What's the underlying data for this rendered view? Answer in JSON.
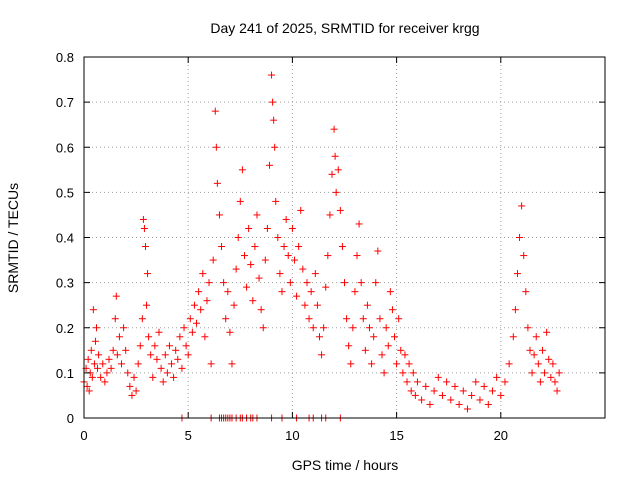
{
  "chart_data": {
    "type": "scatter",
    "title": "Day 241 of 2025, SRMTID for receiver krgg",
    "xlabel": "GPS time / hours",
    "ylabel": "SRMTID / TECUs",
    "xlim": [
      0,
      25
    ],
    "ylim": [
      0,
      0.8
    ],
    "xticks": [
      0,
      5,
      10,
      15,
      20
    ],
    "xtick_labels": [
      "0",
      "5",
      "10",
      "15",
      "20"
    ],
    "yticks": [
      0,
      0.1,
      0.2,
      0.3,
      0.4,
      0.5,
      0.6,
      0.7,
      0.8
    ],
    "ytick_labels": [
      "0",
      "0.1",
      "0.2",
      "0.3",
      "0.4",
      "0.5",
      "0.6",
      "0.7",
      "0.8"
    ],
    "grid": true,
    "marker": "+",
    "color": "#ff0000",
    "series": [
      {
        "name": "SRMTID",
        "points": [
          [
            0.0,
            0.08
          ],
          [
            0.1,
            0.11
          ],
          [
            0.15,
            0.07
          ],
          [
            0.2,
            0.13
          ],
          [
            0.25,
            0.06
          ],
          [
            0.3,
            0.1
          ],
          [
            0.35,
            0.15
          ],
          [
            0.4,
            0.09
          ],
          [
            0.45,
            0.24
          ],
          [
            0.5,
            0.12
          ],
          [
            0.55,
            0.17
          ],
          [
            0.6,
            0.2
          ],
          [
            0.65,
            0.11
          ],
          [
            0.7,
            0.14
          ],
          [
            0.8,
            0.09
          ],
          [
            0.9,
            0.12
          ],
          [
            1.0,
            0.08
          ],
          [
            1.1,
            0.1
          ],
          [
            1.2,
            0.13
          ],
          [
            1.3,
            0.11
          ],
          [
            1.4,
            0.15
          ],
          [
            1.5,
            0.22
          ],
          [
            1.55,
            0.27
          ],
          [
            1.6,
            0.14
          ],
          [
            1.7,
            0.18
          ],
          [
            1.8,
            0.12
          ],
          [
            1.9,
            0.2
          ],
          [
            2.0,
            0.15
          ],
          [
            2.1,
            0.1
          ],
          [
            2.2,
            0.07
          ],
          [
            2.3,
            0.05
          ],
          [
            2.4,
            0.09
          ],
          [
            2.5,
            0.06
          ],
          [
            2.6,
            0.12
          ],
          [
            2.7,
            0.16
          ],
          [
            2.8,
            0.22
          ],
          [
            2.85,
            0.44
          ],
          [
            2.9,
            0.42
          ],
          [
            2.95,
            0.38
          ],
          [
            3.0,
            0.25
          ],
          [
            3.05,
            0.32
          ],
          [
            3.1,
            0.18
          ],
          [
            3.2,
            0.14
          ],
          [
            3.3,
            0.09
          ],
          [
            3.4,
            0.16
          ],
          [
            3.5,
            0.13
          ],
          [
            3.6,
            0.19
          ],
          [
            3.7,
            0.11
          ],
          [
            3.8,
            0.08
          ],
          [
            3.9,
            0.14
          ],
          [
            4.0,
            0.1
          ],
          [
            4.1,
            0.16
          ],
          [
            4.2,
            0.12
          ],
          [
            4.3,
            0.09
          ],
          [
            4.4,
            0.15
          ],
          [
            4.5,
            0.13
          ],
          [
            4.6,
            0.18
          ],
          [
            4.7,
            0.11
          ],
          [
            4.8,
            0.2
          ],
          [
            4.9,
            0.16
          ],
          [
            5.0,
            0.14
          ],
          [
            5.1,
            0.22
          ],
          [
            5.2,
            0.19
          ],
          [
            5.3,
            0.25
          ],
          [
            5.4,
            0.21
          ],
          [
            5.5,
            0.28
          ],
          [
            5.6,
            0.24
          ],
          [
            5.7,
            0.32
          ],
          [
            5.8,
            0.18
          ],
          [
            5.9,
            0.26
          ],
          [
            6.0,
            0.3
          ],
          [
            6.1,
            0.12
          ],
          [
            6.2,
            0.35
          ],
          [
            6.3,
            0.68
          ],
          [
            6.35,
            0.6
          ],
          [
            6.4,
            0.52
          ],
          [
            6.5,
            0.45
          ],
          [
            6.6,
            0.38
          ],
          [
            6.7,
            0.3
          ],
          [
            6.8,
            0.22
          ],
          [
            6.9,
            0.28
          ],
          [
            7.0,
            0.19
          ],
          [
            7.1,
            0.12
          ],
          [
            7.2,
            0.25
          ],
          [
            7.3,
            0.33
          ],
          [
            7.4,
            0.4
          ],
          [
            7.5,
            0.48
          ],
          [
            7.6,
            0.55
          ],
          [
            7.7,
            0.36
          ],
          [
            7.8,
            0.29
          ],
          [
            7.9,
            0.42
          ],
          [
            8.0,
            0.34
          ],
          [
            8.1,
            0.26
          ],
          [
            8.2,
            0.38
          ],
          [
            8.3,
            0.45
          ],
          [
            8.4,
            0.31
          ],
          [
            8.5,
            0.24
          ],
          [
            8.6,
            0.2
          ],
          [
            8.7,
            0.35
          ],
          [
            8.8,
            0.42
          ],
          [
            8.9,
            0.56
          ],
          [
            9.0,
            0.76
          ],
          [
            9.05,
            0.7
          ],
          [
            9.1,
            0.66
          ],
          [
            9.15,
            0.6
          ],
          [
            9.2,
            0.48
          ],
          [
            9.3,
            0.4
          ],
          [
            9.4,
            0.32
          ],
          [
            9.5,
            0.28
          ],
          [
            9.6,
            0.38
          ],
          [
            9.7,
            0.44
          ],
          [
            9.8,
            0.36
          ],
          [
            9.9,
            0.3
          ],
          [
            10.0,
            0.42
          ],
          [
            10.1,
            0.35
          ],
          [
            10.2,
            0.27
          ],
          [
            10.3,
            0.38
          ],
          [
            10.4,
            0.46
          ],
          [
            10.5,
            0.33
          ],
          [
            10.6,
            0.25
          ],
          [
            10.7,
            0.3
          ],
          [
            10.8,
            0.22
          ],
          [
            10.9,
            0.28
          ],
          [
            11.0,
            0.2
          ],
          [
            11.1,
            0.32
          ],
          [
            11.2,
            0.25
          ],
          [
            11.3,
            0.18
          ],
          [
            11.4,
            0.14
          ],
          [
            11.5,
            0.2
          ],
          [
            11.6,
            0.29
          ],
          [
            11.7,
            0.36
          ],
          [
            11.8,
            0.45
          ],
          [
            11.9,
            0.54
          ],
          [
            12.0,
            0.64
          ],
          [
            12.05,
            0.58
          ],
          [
            12.1,
            0.5
          ],
          [
            12.2,
            0.55
          ],
          [
            12.3,
            0.46
          ],
          [
            12.4,
            0.38
          ],
          [
            12.5,
            0.3
          ],
          [
            12.6,
            0.22
          ],
          [
            12.7,
            0.16
          ],
          [
            12.8,
            0.12
          ],
          [
            12.9,
            0.2
          ],
          [
            13.0,
            0.28
          ],
          [
            13.1,
            0.36
          ],
          [
            13.2,
            0.43
          ],
          [
            13.3,
            0.3
          ],
          [
            13.4,
            0.22
          ],
          [
            13.5,
            0.15
          ],
          [
            13.6,
            0.25
          ],
          [
            13.7,
            0.2
          ],
          [
            13.8,
            0.12
          ],
          [
            13.9,
            0.18
          ],
          [
            14.0,
            0.3
          ],
          [
            14.1,
            0.37
          ],
          [
            14.2,
            0.22
          ],
          [
            14.3,
            0.14
          ],
          [
            14.4,
            0.1
          ],
          [
            14.5,
            0.2
          ],
          [
            14.6,
            0.16
          ],
          [
            14.7,
            0.28
          ],
          [
            14.8,
            0.24
          ],
          [
            14.9,
            0.18
          ],
          [
            15.0,
            0.12
          ],
          [
            15.1,
            0.22
          ],
          [
            15.2,
            0.15
          ],
          [
            15.3,
            0.1
          ],
          [
            15.4,
            0.14
          ],
          [
            15.5,
            0.08
          ],
          [
            15.6,
            0.12
          ],
          [
            15.7,
            0.06
          ],
          [
            15.8,
            0.1
          ],
          [
            15.9,
            0.05
          ],
          [
            16.0,
            0.08
          ],
          [
            16.2,
            0.04
          ],
          [
            16.4,
            0.07
          ],
          [
            16.6,
            0.03
          ],
          [
            16.8,
            0.06
          ],
          [
            17.0,
            0.09
          ],
          [
            17.2,
            0.05
          ],
          [
            17.4,
            0.08
          ],
          [
            17.6,
            0.04
          ],
          [
            17.8,
            0.07
          ],
          [
            18.0,
            0.03
          ],
          [
            18.2,
            0.06
          ],
          [
            18.4,
            0.02
          ],
          [
            18.6,
            0.05
          ],
          [
            18.8,
            0.08
          ],
          [
            19.0,
            0.04
          ],
          [
            19.2,
            0.07
          ],
          [
            19.4,
            0.03
          ],
          [
            19.6,
            0.06
          ],
          [
            19.8,
            0.09
          ],
          [
            20.0,
            0.05
          ],
          [
            20.2,
            0.08
          ],
          [
            20.4,
            0.12
          ],
          [
            20.6,
            0.18
          ],
          [
            20.7,
            0.24
          ],
          [
            20.8,
            0.32
          ],
          [
            20.9,
            0.4
          ],
          [
            21.0,
            0.47
          ],
          [
            21.1,
            0.36
          ],
          [
            21.2,
            0.28
          ],
          [
            21.3,
            0.2
          ],
          [
            21.4,
            0.15
          ],
          [
            21.5,
            0.1
          ],
          [
            21.6,
            0.14
          ],
          [
            21.7,
            0.18
          ],
          [
            21.8,
            0.12
          ],
          [
            21.9,
            0.08
          ],
          [
            22.0,
            0.15
          ],
          [
            22.1,
            0.1
          ],
          [
            22.2,
            0.19
          ],
          [
            22.3,
            0.13
          ],
          [
            22.4,
            0.09
          ],
          [
            22.5,
            0.12
          ],
          [
            22.6,
            0.08
          ],
          [
            22.7,
            0.06
          ],
          [
            22.8,
            0.1
          ]
        ]
      }
    ],
    "zero_points_x": [
      4.7,
      6.1,
      6.5,
      6.6,
      6.7,
      6.8,
      6.9,
      7.0,
      7.1,
      7.3,
      7.5,
      7.6,
      7.8,
      8.0,
      8.1,
      8.3,
      9.0,
      9.5,
      10.2,
      10.8,
      11.0,
      11.4,
      11.6,
      12.3
    ]
  }
}
